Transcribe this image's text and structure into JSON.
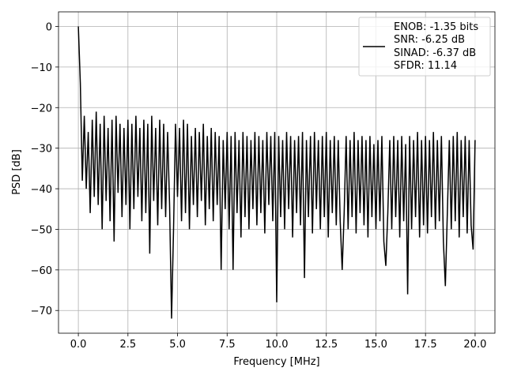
{
  "chart_data": {
    "type": "line",
    "title": "",
    "xlabel": "Frequency [MHz]",
    "ylabel": "PSD [dB]",
    "xlim": [
      -1.0,
      21.0
    ],
    "ylim": [
      -75.6,
      3.6
    ],
    "grid": true,
    "xticks": [
      "0.0",
      "2.5",
      "5.0",
      "7.5",
      "10.0",
      "12.5",
      "15.0",
      "17.5",
      "20.0"
    ],
    "xtick_values": [
      0,
      2.5,
      5,
      7.5,
      10,
      12.5,
      15,
      17.5,
      20
    ],
    "yticks": [
      "0",
      "−10",
      "−20",
      "−30",
      "−40",
      "−50",
      "−60",
      "−70"
    ],
    "ytick_values": [
      0,
      -10,
      -20,
      -30,
      -40,
      -50,
      -60,
      -70
    ],
    "legend_placement": "top-right",
    "legend": [
      "ENOB: -1.35 bits",
      "SNR: -6.25 dB",
      "SINAD: -6.37 dB",
      "SFDR: 11.14"
    ],
    "line_color": "#000000",
    "x_start": 0,
    "x_step": 0.1,
    "y": [
      0,
      -14,
      -38,
      -22,
      -40,
      -26,
      -46,
      -23,
      -42,
      -21,
      -44,
      -24,
      -50,
      -22,
      -43,
      -25,
      -48,
      -23,
      -53,
      -22,
      -41,
      -24,
      -47,
      -25,
      -44,
      -23,
      -50,
      -24,
      -45,
      -22,
      -42,
      -25,
      -48,
      -23,
      -46,
      -24,
      -56,
      -22,
      -43,
      -25,
      -49,
      -23,
      -45,
      -24,
      -47,
      -26,
      -44,
      -72,
      -50,
      -24,
      -42,
      -25,
      -48,
      -23,
      -46,
      -24,
      -50,
      -27,
      -44,
      -25,
      -47,
      -26,
      -43,
      -24,
      -49,
      -27,
      -45,
      -25,
      -48,
      -26,
      -44,
      -27,
      -60,
      -28,
      -45,
      -26,
      -50,
      -27,
      -60,
      -26,
      -46,
      -28,
      -52,
      -26,
      -47,
      -27,
      -50,
      -28,
      -45,
      -26,
      -49,
      -27,
      -46,
      -28,
      -51,
      -26,
      -44,
      -27,
      -48,
      -26,
      -68,
      -27,
      -47,
      -28,
      -50,
      -26,
      -45,
      -27,
      -52,
      -28,
      -46,
      -27,
      -49,
      -26,
      -62,
      -28,
      -47,
      -27,
      -51,
      -26,
      -45,
      -28,
      -50,
      -27,
      -47,
      -26,
      -52,
      -28,
      -46,
      -27,
      -49,
      -28,
      -48,
      -60,
      -46,
      -27,
      -50,
      -28,
      -47,
      -26,
      -51,
      -28,
      -46,
      -27,
      -49,
      -28,
      -52,
      -27,
      -47,
      -29,
      -50,
      -28,
      -48,
      -27,
      -53,
      -59,
      -46,
      -28,
      -50,
      -27,
      -47,
      -28,
      -52,
      -27,
      -48,
      -29,
      -66,
      -27,
      -50,
      -28,
      -47,
      -26,
      -52,
      -28,
      -49,
      -27,
      -51,
      -28,
      -47,
      -26,
      -50,
      -28,
      -48,
      -27,
      -53,
      -64,
      -46,
      -28,
      -50,
      -27,
      -48,
      -26,
      -52,
      -28,
      -47,
      -27,
      -51,
      -28,
      -49,
      -55,
      -28
    ]
  }
}
